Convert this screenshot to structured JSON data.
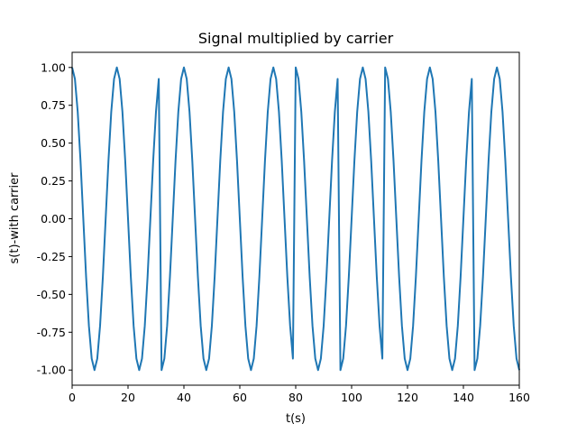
{
  "chart_data": {
    "type": "line",
    "title": "Signal multiplied by carrier",
    "xlabel": "t(s)",
    "ylabel": "s(t)-with carrier",
    "xlim": [
      0,
      160
    ],
    "ylim": [
      -1.1,
      1.1
    ],
    "xticks": [
      "0",
      "20",
      "40",
      "60",
      "80",
      "100",
      "120",
      "140",
      "160"
    ],
    "yticks": [
      "-1.00",
      "-0.75",
      "-0.50",
      "-0.25",
      "0.00",
      "0.25",
      "0.50",
      "0.75",
      "1.00"
    ],
    "grid": false,
    "legend": "none",
    "series": [
      {
        "color": "#1f77b4",
        "x": [
          0,
          1,
          2,
          3,
          4,
          5,
          6,
          7,
          8,
          9,
          10,
          11,
          12,
          13,
          14,
          15,
          16,
          17,
          18,
          19,
          20,
          21,
          22,
          23,
          24,
          25,
          26,
          27,
          28,
          29,
          30,
          31,
          32,
          33,
          34,
          35,
          36,
          37,
          38,
          39,
          40,
          41,
          42,
          43,
          44,
          45,
          46,
          47,
          48,
          49,
          50,
          51,
          52,
          53,
          54,
          55,
          56,
          57,
          58,
          59,
          60,
          61,
          62,
          63,
          64,
          65,
          66,
          67,
          68,
          69,
          70,
          71,
          72,
          73,
          74,
          75,
          76,
          77,
          78,
          79,
          80,
          81,
          82,
          83,
          84,
          85,
          86,
          87,
          88,
          89,
          90,
          91,
          92,
          93,
          94,
          95,
          96,
          97,
          98,
          99,
          100,
          101,
          102,
          103,
          104,
          105,
          106,
          107,
          108,
          109,
          110,
          111,
          112,
          113,
          114,
          115,
          116,
          117,
          118,
          119,
          120,
          121,
          122,
          123,
          124,
          125,
          126,
          127,
          128,
          129,
          130,
          131,
          132,
          133,
          134,
          135,
          136,
          137,
          138,
          139,
          140,
          141,
          142,
          143,
          144,
          145,
          146,
          147,
          148,
          149,
          150,
          151,
          152,
          153,
          154,
          155,
          156,
          157,
          158,
          159,
          160
        ],
        "y": [
          1.0,
          0.924,
          0.707,
          0.383,
          0.0,
          -0.383,
          -0.707,
          -0.924,
          -1.0,
          -0.924,
          -0.707,
          -0.383,
          0.0,
          0.383,
          0.707,
          0.924,
          1.0,
          0.924,
          0.707,
          0.383,
          0.0,
          -0.383,
          -0.707,
          -0.924,
          -1.0,
          -0.924,
          -0.707,
          -0.383,
          0.0,
          0.383,
          0.707,
          0.924,
          -1.0,
          -0.924,
          -0.707,
          -0.383,
          0.0,
          0.383,
          0.707,
          0.924,
          1.0,
          0.924,
          0.707,
          0.383,
          0.0,
          -0.383,
          -0.707,
          -0.924,
          -1.0,
          -0.924,
          -0.707,
          -0.383,
          0.0,
          0.383,
          0.707,
          0.924,
          1.0,
          0.924,
          0.707,
          0.383,
          0.0,
          -0.383,
          -0.707,
          -0.924,
          -1.0,
          -0.924,
          -0.707,
          -0.383,
          0.0,
          0.383,
          0.707,
          0.924,
          1.0,
          0.924,
          0.707,
          0.383,
          0.0,
          -0.383,
          -0.707,
          -0.924,
          1.0,
          0.924,
          0.707,
          0.383,
          0.0,
          -0.383,
          -0.707,
          -0.924,
          -1.0,
          -0.924,
          -0.707,
          -0.383,
          0.0,
          0.383,
          0.707,
          0.924,
          -1.0,
          -0.924,
          -0.707,
          -0.383,
          0.0,
          0.383,
          0.707,
          0.924,
          1.0,
          0.924,
          0.707,
          0.383,
          0.0,
          -0.383,
          -0.707,
          -0.924,
          1.0,
          0.924,
          0.707,
          0.383,
          0.0,
          -0.383,
          -0.707,
          -0.924,
          -1.0,
          -0.924,
          -0.707,
          -0.383,
          0.0,
          0.383,
          0.707,
          0.924,
          1.0,
          0.924,
          0.707,
          0.383,
          0.0,
          -0.383,
          -0.707,
          -0.924,
          -1.0,
          -0.924,
          -0.707,
          -0.383,
          0.0,
          0.383,
          0.707,
          0.924,
          -1.0,
          -0.924,
          -0.707,
          -0.383,
          0.0,
          0.383,
          0.707,
          0.924,
          1.0,
          0.924,
          0.707,
          0.383,
          0.0,
          -0.383,
          -0.707,
          -0.924,
          -1.0
        ]
      }
    ]
  }
}
